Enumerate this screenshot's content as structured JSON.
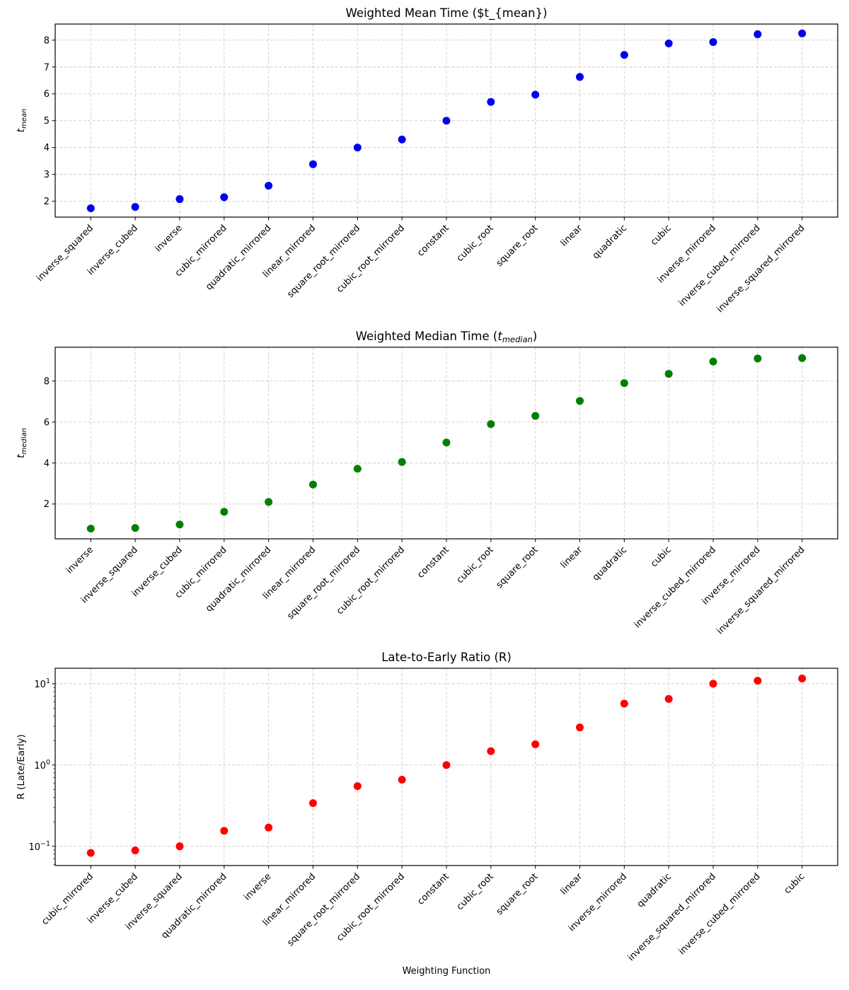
{
  "figure": {
    "xlabel": "Weighting Function",
    "background_color": "#ffffff",
    "grid_color": "#cccccc",
    "spine_color": "#000000"
  },
  "chart_data": [
    {
      "type": "scatter",
      "title": "Weighted Mean Time ($t_{mean})",
      "ylabel": {
        "base": "t",
        "sub": "mean"
      },
      "point_color": "#0000ee",
      "scale": "linear",
      "yticks": [
        2,
        3,
        4,
        5,
        6,
        7,
        8
      ],
      "ylim": [
        1.41,
        8.6
      ],
      "grid": true,
      "legend": "none",
      "categories": [
        "inverse_squared",
        "inverse_cubed",
        "inverse",
        "cubic_mirrored",
        "quadratic_mirrored",
        "linear_mirrored",
        "square_root_mirrored",
        "cubic_root_mirrored",
        "constant",
        "cubic_root",
        "square_root",
        "linear",
        "quadratic",
        "cubic",
        "inverse_mirrored",
        "inverse_cubed_mirrored",
        "inverse_squared_mirrored"
      ],
      "values": [
        1.74,
        1.79,
        2.08,
        2.15,
        2.58,
        3.38,
        4.0,
        4.3,
        5.0,
        5.7,
        5.97,
        6.63,
        7.45,
        7.88,
        7.93,
        8.22,
        8.25
      ]
    },
    {
      "type": "scatter",
      "title": {
        "prefix": "Weighted Median Time (",
        "math": {
          "base": "t",
          "sub": "median"
        },
        "suffix": ")"
      },
      "ylabel": {
        "base": "t",
        "sub": "median"
      },
      "point_color": "#008000",
      "scale": "linear",
      "yticks": [
        2,
        4,
        6,
        8
      ],
      "ylim": [
        0.3,
        9.65
      ],
      "grid": true,
      "legend": "none",
      "categories": [
        "inverse",
        "inverse_squared",
        "inverse_cubed",
        "cubic_mirrored",
        "quadratic_mirrored",
        "linear_mirrored",
        "square_root_mirrored",
        "cubic_root_mirrored",
        "constant",
        "cubic_root",
        "square_root",
        "linear",
        "quadratic",
        "cubic",
        "inverse_cubed_mirrored",
        "inverse_mirrored",
        "inverse_squared_mirrored"
      ],
      "values": [
        0.8,
        0.83,
        1.0,
        1.62,
        2.1,
        2.95,
        3.72,
        4.05,
        5.0,
        5.9,
        6.3,
        7.03,
        7.9,
        8.35,
        8.95,
        9.1,
        9.12
      ]
    },
    {
      "type": "scatter",
      "title": "Late-to-Early Ratio (R)",
      "ylabel": "R (Late/Early)",
      "point_color": "#ff0000",
      "scale": "log",
      "ytick_exponents": [
        -1,
        0,
        1
      ],
      "ylim": [
        0.058,
        15.5
      ],
      "grid": true,
      "legend": "none",
      "categories": [
        "cubic_mirrored",
        "inverse_cubed",
        "inverse_squared",
        "quadratic_mirrored",
        "inverse",
        "linear_mirrored",
        "square_root_mirrored",
        "cubic_root_mirrored",
        "constant",
        "cubic_root",
        "square_root",
        "linear",
        "inverse_mirrored",
        "quadratic",
        "inverse_squared_mirrored",
        "inverse_cubed_mirrored",
        "cubic"
      ],
      "values": [
        0.083,
        0.089,
        0.1,
        0.155,
        0.17,
        0.34,
        0.55,
        0.66,
        1.0,
        1.48,
        1.8,
        2.9,
        5.7,
        6.5,
        10.0,
        10.9,
        11.6
      ]
    }
  ]
}
